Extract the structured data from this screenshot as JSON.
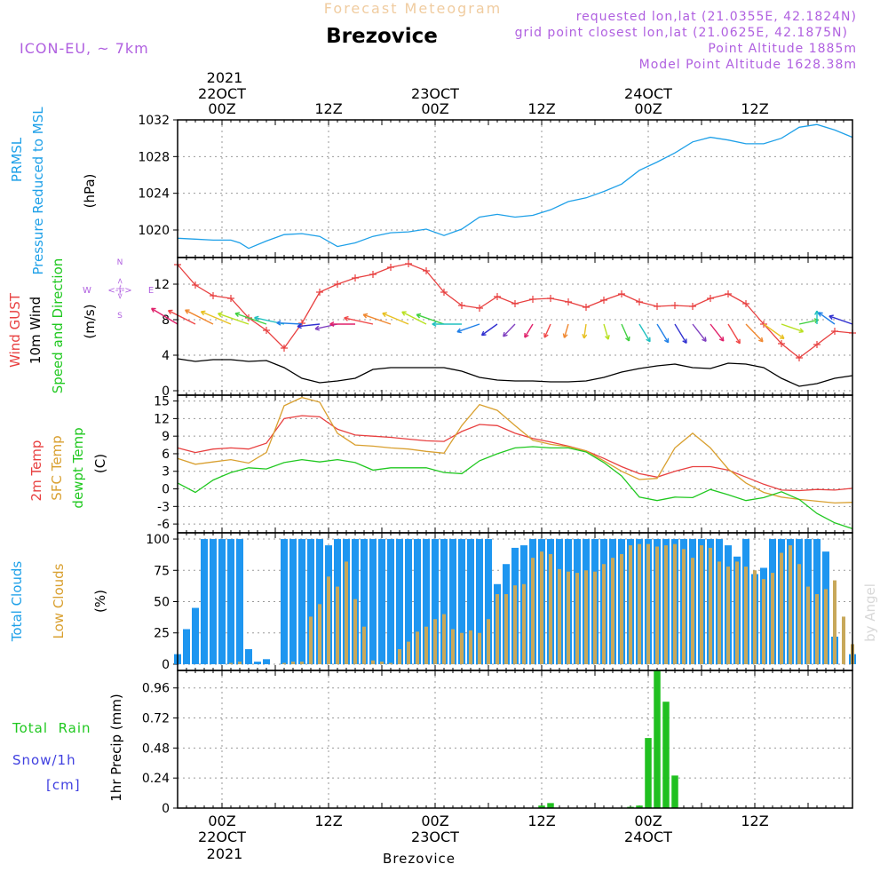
{
  "header": {
    "product": "Forecast Meteogram",
    "station": "Brezovice",
    "model": "ICON-EU, ~ 7km",
    "requested": "requested lon,lat (21.0355E, 42.1824N)",
    "grid_point": "grid point closest lon,lat (21.0625E, 42.1875N)",
    "point_altitude": "Point Altitude 1885m",
    "model_altitude": "Model Point Altitude 1628.38m",
    "top_year": "2021",
    "watermark": "by Angel",
    "footer_station": "Brezovice",
    "bottom_year": "2021"
  },
  "time_axis": {
    "ticks": [
      {
        "hour": 0,
        "label": "00Z",
        "date": "22OCT"
      },
      {
        "hour": 12,
        "label": "12Z",
        "date": ""
      },
      {
        "hour": 24,
        "label": "00Z",
        "date": "23OCT"
      },
      {
        "hour": 36,
        "label": "12Z",
        "date": ""
      },
      {
        "hour": 48,
        "label": "00Z",
        "date": "24OCT"
      },
      {
        "hour": 60,
        "label": "12Z",
        "date": ""
      }
    ],
    "range_hours": [
      -5,
      71
    ]
  },
  "panel_labels": {
    "pressure": [
      "PRMSL",
      "Pressure Reduced to MSL"
    ],
    "pressure_unit": "(hPa)",
    "wind": [
      "Wind GUST",
      "10m Wind",
      "Speed and Direction"
    ],
    "wind_unit": "(m/s)",
    "compass": {
      "n": "N",
      "s": "S",
      "e": "E",
      "w": "W",
      "arrow_h": "<-|->",
      "arrow_v": "<-|->"
    },
    "temp": [
      "2m Temp",
      "SFC Temp",
      "dewpt Temp"
    ],
    "temp_unit": "(C)",
    "clouds": [
      "Total Clouds",
      "Low Clouds"
    ],
    "clouds_unit": "(%)",
    "precip_left": [
      "Total  Rain",
      "Snow/1h",
      "[cm]"
    ],
    "precip_axis": "1hr Precip (mm)"
  },
  "colors": {
    "pressure": "#1ea0e8",
    "gust": "#e84040",
    "wind10": "#000000",
    "t2m": "#e84040",
    "tsfc": "#d9a030",
    "dewpt": "#20c820",
    "total_cloud": "#1e96f0",
    "low_cloud": "#c8a85a",
    "rain": "#20c020",
    "purple": "#b060e0",
    "snow": "#4040e0"
  },
  "chart_data": [
    {
      "type": "line",
      "title": "PRMSL Pressure Reduced to MSL",
      "ylabel": "(hPa)",
      "ylim": [
        1017,
        1032
      ],
      "yticks": [
        1020,
        1024,
        1028,
        1032
      ],
      "grid": true,
      "x": [
        -5,
        -3,
        -1,
        1,
        2,
        3,
        5,
        7,
        9,
        11,
        13,
        15,
        17,
        19,
        21,
        23,
        25,
        27,
        29,
        31,
        33,
        35,
        37,
        39,
        41,
        43,
        45,
        47,
        49,
        51,
        53,
        55,
        57,
        59,
        61,
        63,
        65,
        67,
        69,
        71
      ],
      "series": [
        {
          "name": "PRMSL",
          "values": [
            1019.1,
            1019.0,
            1018.9,
            1018.9,
            1018.6,
            1018.0,
            1018.8,
            1019.5,
            1019.6,
            1019.3,
            1018.2,
            1018.6,
            1019.3,
            1019.7,
            1019.8,
            1020.1,
            1019.4,
            1020.1,
            1021.4,
            1021.7,
            1021.4,
            1021.6,
            1022.2,
            1023.1,
            1023.5,
            1024.2,
            1025.0,
            1026.5,
            1027.4,
            1028.4,
            1029.6,
            1030.1,
            1029.8,
            1029.4,
            1029.4,
            1030.0,
            1031.2,
            1031.5,
            1030.9,
            1030.1
          ]
        }
      ]
    },
    {
      "type": "line",
      "title": "Wind GUST / 10m Wind Speed and Direction",
      "ylabel": "(m/s)",
      "ylim": [
        -0.5,
        15
      ],
      "yticks": [
        0,
        4,
        8,
        12
      ],
      "grid": true,
      "x": [
        -5,
        -3,
        -1,
        1,
        3,
        5,
        7,
        9,
        11,
        13,
        15,
        17,
        19,
        21,
        23,
        25,
        27,
        29,
        31,
        33,
        35,
        37,
        39,
        41,
        43,
        45,
        47,
        49,
        51,
        53,
        55,
        57,
        59,
        61,
        63,
        65,
        67,
        69,
        71
      ],
      "series": [
        {
          "name": "Wind GUST",
          "values": [
            14.2,
            11.9,
            10.7,
            10.4,
            8.2,
            6.8,
            4.8,
            7.6,
            11.1,
            12.0,
            12.7,
            13.1,
            13.9,
            14.3,
            13.5,
            11.1,
            9.6,
            9.3,
            10.6,
            9.8,
            10.3,
            10.4,
            10.0,
            9.4,
            10.2,
            10.9,
            10.0,
            9.5,
            9.6,
            9.5,
            10.4,
            10.9,
            9.8,
            7.5,
            5.3,
            3.7,
            5.2,
            6.7,
            6.5
          ]
        },
        {
          "name": "10m Wind",
          "values": [
            3.6,
            3.3,
            3.5,
            3.5,
            3.3,
            3.4,
            2.6,
            1.4,
            0.9,
            1.1,
            1.4,
            2.4,
            2.6,
            2.6,
            2.6,
            2.6,
            2.2,
            1.5,
            1.2,
            1.1,
            1.1,
            1.0,
            1.0,
            1.1,
            1.5,
            2.1,
            2.5,
            2.8,
            3.0,
            2.6,
            2.5,
            3.1,
            3.0,
            2.6,
            1.4,
            0.5,
            0.8,
            1.4,
            1.7
          ]
        }
      ],
      "wind_direction_deg": [
        225,
        230,
        230,
        235,
        240,
        240,
        250,
        265,
        280,
        290,
        270,
        250,
        240,
        235,
        230,
        240,
        270,
        300,
        320,
        330,
        340,
        345,
        350,
        355,
        10,
        15,
        20,
        20,
        20,
        25,
        25,
        20,
        30,
        40,
        60,
        110,
        180,
        220,
        240
      ]
    },
    {
      "type": "line",
      "title": "2m Temp / SFC Temp / dewpt Temp",
      "ylabel": "(C)",
      "ylim": [
        -7.5,
        16
      ],
      "yticks": [
        -6,
        -3,
        0,
        3,
        6,
        9,
        12,
        15
      ],
      "grid": true,
      "x": [
        -5,
        -3,
        -1,
        1,
        3,
        5,
        7,
        9,
        11,
        13,
        15,
        17,
        19,
        21,
        23,
        25,
        27,
        29,
        31,
        33,
        35,
        37,
        39,
        41,
        43,
        45,
        47,
        49,
        51,
        53,
        55,
        57,
        59,
        61,
        63,
        65,
        67,
        69,
        71
      ],
      "series": [
        {
          "name": "2m Temp",
          "values": [
            7.0,
            6.2,
            6.8,
            7.0,
            6.8,
            7.8,
            12.0,
            12.5,
            12.3,
            10.2,
            9.2,
            9.0,
            8.8,
            8.5,
            8.2,
            8.1,
            9.8,
            11.0,
            10.8,
            9.5,
            8.6,
            8.0,
            7.3,
            6.5,
            5.2,
            3.8,
            2.6,
            2.0,
            3.0,
            3.8,
            3.8,
            3.2,
            2.0,
            0.8,
            -0.2,
            -0.3,
            -0.1,
            -0.2,
            0.1
          ]
        },
        {
          "name": "SFC Temp",
          "values": [
            5.2,
            4.2,
            4.6,
            5.0,
            4.4,
            6.2,
            14.2,
            15.6,
            14.8,
            9.5,
            7.5,
            7.3,
            7.0,
            6.8,
            6.4,
            6.1,
            10.8,
            14.4,
            13.4,
            10.8,
            8.3,
            7.6,
            7.2,
            6.5,
            4.8,
            3.0,
            1.6,
            1.8,
            7.0,
            9.5,
            7.0,
            3.4,
            1.0,
            -0.6,
            -1.4,
            -1.8,
            -2.1,
            -2.4,
            -2.3
          ]
        },
        {
          "name": "dewpt Temp",
          "values": [
            1.0,
            -0.6,
            1.5,
            2.8,
            3.6,
            3.4,
            4.5,
            5.0,
            4.6,
            5.0,
            4.5,
            3.2,
            3.6,
            3.6,
            3.6,
            2.8,
            2.6,
            4.8,
            6.0,
            7.0,
            7.2,
            7.0,
            7.0,
            6.3,
            4.5,
            2.2,
            -1.4,
            -2.0,
            -1.4,
            -1.5,
            -0.1,
            -1.0,
            -2.0,
            -1.5,
            -0.5,
            -1.8,
            -4.2,
            -5.8,
            -6.8
          ]
        }
      ]
    },
    {
      "type": "bar",
      "title": "Total Clouds / Low Clouds",
      "ylabel": "(%)",
      "ylim": [
        -5,
        105
      ],
      "yticks": [
        0,
        25,
        50,
        75,
        100
      ],
      "grid": true,
      "x": [
        -5,
        -4,
        -3,
        -2,
        -1,
        0,
        1,
        2,
        3,
        4,
        5,
        6,
        7,
        8,
        9,
        10,
        11,
        12,
        13,
        14,
        15,
        16,
        17,
        18,
        19,
        20,
        21,
        22,
        23,
        24,
        25,
        26,
        27,
        28,
        29,
        30,
        31,
        32,
        33,
        34,
        35,
        36,
        37,
        38,
        39,
        40,
        41,
        42,
        43,
        44,
        45,
        46,
        47,
        48,
        49,
        50,
        51,
        52,
        53,
        54,
        55,
        56,
        57,
        58,
        59,
        60,
        61,
        62,
        63,
        64,
        65,
        66,
        67,
        68,
        69,
        70,
        71
      ],
      "series": [
        {
          "name": "Total Clouds",
          "values": [
            8,
            28,
            45,
            100,
            100,
            100,
            100,
            100,
            12,
            2,
            4,
            0,
            100,
            100,
            100,
            100,
            100,
            95,
            100,
            100,
            100,
            100,
            100,
            100,
            100,
            100,
            100,
            100,
            100,
            100,
            100,
            100,
            100,
            100,
            100,
            100,
            64,
            80,
            93,
            95,
            100,
            100,
            100,
            100,
            100,
            100,
            100,
            100,
            100,
            100,
            100,
            100,
            100,
            100,
            100,
            100,
            100,
            100,
            100,
            100,
            100,
            100,
            95,
            86,
            100,
            72,
            77,
            100,
            100,
            100,
            100,
            100,
            100,
            90,
            22,
            0,
            8
          ]
        },
        {
          "name": "Low Clouds",
          "values": [
            0,
            0,
            0,
            0,
            0,
            0,
            1,
            2,
            0,
            0,
            0,
            0,
            1,
            2,
            2,
            38,
            48,
            70,
            62,
            82,
            52,
            30,
            3,
            2,
            1,
            12,
            18,
            26,
            30,
            36,
            40,
            28,
            25,
            27,
            25,
            36,
            56,
            56,
            63,
            64,
            85,
            90,
            88,
            76,
            74,
            73,
            75,
            74,
            80,
            85,
            88,
            95,
            96,
            96,
            94,
            95,
            96,
            92,
            85,
            95,
            93,
            82,
            78,
            82,
            78,
            75,
            68,
            73,
            89,
            95,
            80,
            62,
            56,
            60,
            67,
            38,
            16
          ]
        }
      ]
    },
    {
      "type": "bar",
      "title": "Total Rain / Snow/1h [cm]",
      "ylabel": "1hr Precip (mm)",
      "ylim": [
        0,
        1.1
      ],
      "yticks": [
        0,
        0.24,
        0.48,
        0.72,
        0.96
      ],
      "grid": true,
      "x": [
        36,
        37,
        46,
        47,
        48,
        49,
        50,
        51,
        52
      ],
      "series": [
        {
          "name": "Total Rain",
          "values": [
            0.02,
            0.04,
            0.01,
            0.02,
            0.56,
            1.1,
            0.85,
            0.26,
            0.0
          ]
        }
      ]
    }
  ]
}
